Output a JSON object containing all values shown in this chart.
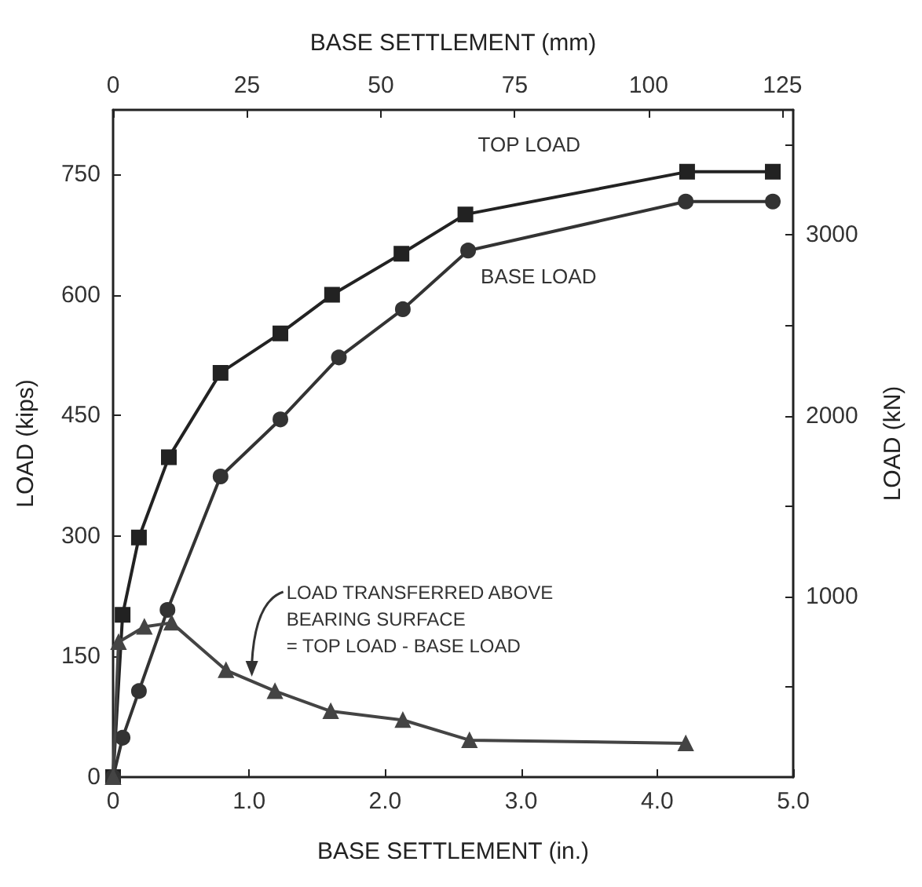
{
  "chart_data": {
    "type": "line",
    "xlabel": "BASE SETTLEMENT (in.)",
    "x2label": "BASE SETTLEMENT (mm)",
    "ylabel": "LOAD (kips)",
    "y2label": "LOAD (kN)",
    "xlim": [
      0,
      5
    ],
    "xticks": [
      0,
      {
        "value": 1,
        "label": "1.0"
      },
      {
        "value": 2,
        "label": "2.0"
      },
      {
        "value": 3,
        "label": "3.0"
      },
      {
        "value": 4,
        "label": "4.0"
      },
      {
        "value": 5,
        "label": "5.0"
      }
    ],
    "x2lim": [
      0,
      127
    ],
    "x2ticks": [
      0,
      25,
      50,
      75,
      100,
      125
    ],
    "ylim": [
      0,
      830
    ],
    "yticks": [
      0,
      150,
      300,
      450,
      600,
      750
    ],
    "y2lim": [
      0,
      3692
    ],
    "y2ticks": [
      {
        "value": 500,
        "label": null
      },
      1000,
      {
        "value": 1500,
        "label": null
      },
      2000,
      {
        "value": 2500,
        "label": null
      },
      3000,
      {
        "value": 3500,
        "label": null
      }
    ],
    "grid": false,
    "legend": false,
    "line_style": "solid",
    "series": [
      {
        "name": "TOP LOAD",
        "color": "#222222",
        "marker": "square",
        "x": [
          0,
          0.07,
          0.19,
          0.41,
          0.79,
          1.23,
          1.61,
          2.12,
          2.59,
          4.22,
          4.85
        ],
        "values": [
          0,
          202,
          298,
          398,
          503,
          552,
          600,
          651,
          700,
          753,
          753
        ]
      },
      {
        "name": "BASE LOAD",
        "color": "#333333",
        "marker": "circle",
        "x": [
          0,
          0.07,
          0.19,
          0.4,
          0.79,
          1.23,
          1.66,
          2.13,
          2.61,
          4.21,
          4.85
        ],
        "values": [
          0,
          49,
          107,
          208,
          374,
          445,
          522,
          582,
          655,
          716,
          716
        ]
      },
      {
        "color": "#444444",
        "marker": "triangle",
        "x": [
          0,
          0.04,
          0.23,
          0.43,
          0.83,
          1.19,
          1.6,
          2.13,
          2.62,
          4.21
        ],
        "values": [
          0,
          168,
          187,
          192,
          133,
          107,
          82,
          71,
          46,
          42
        ]
      }
    ],
    "annotations": [
      {
        "text": "LOAD TRANSFERRED ABOVE\nBEARING SURFACE\n= TOP LOAD - BASE LOAD",
        "x": 1.02,
        "y": 125
      }
    ]
  }
}
